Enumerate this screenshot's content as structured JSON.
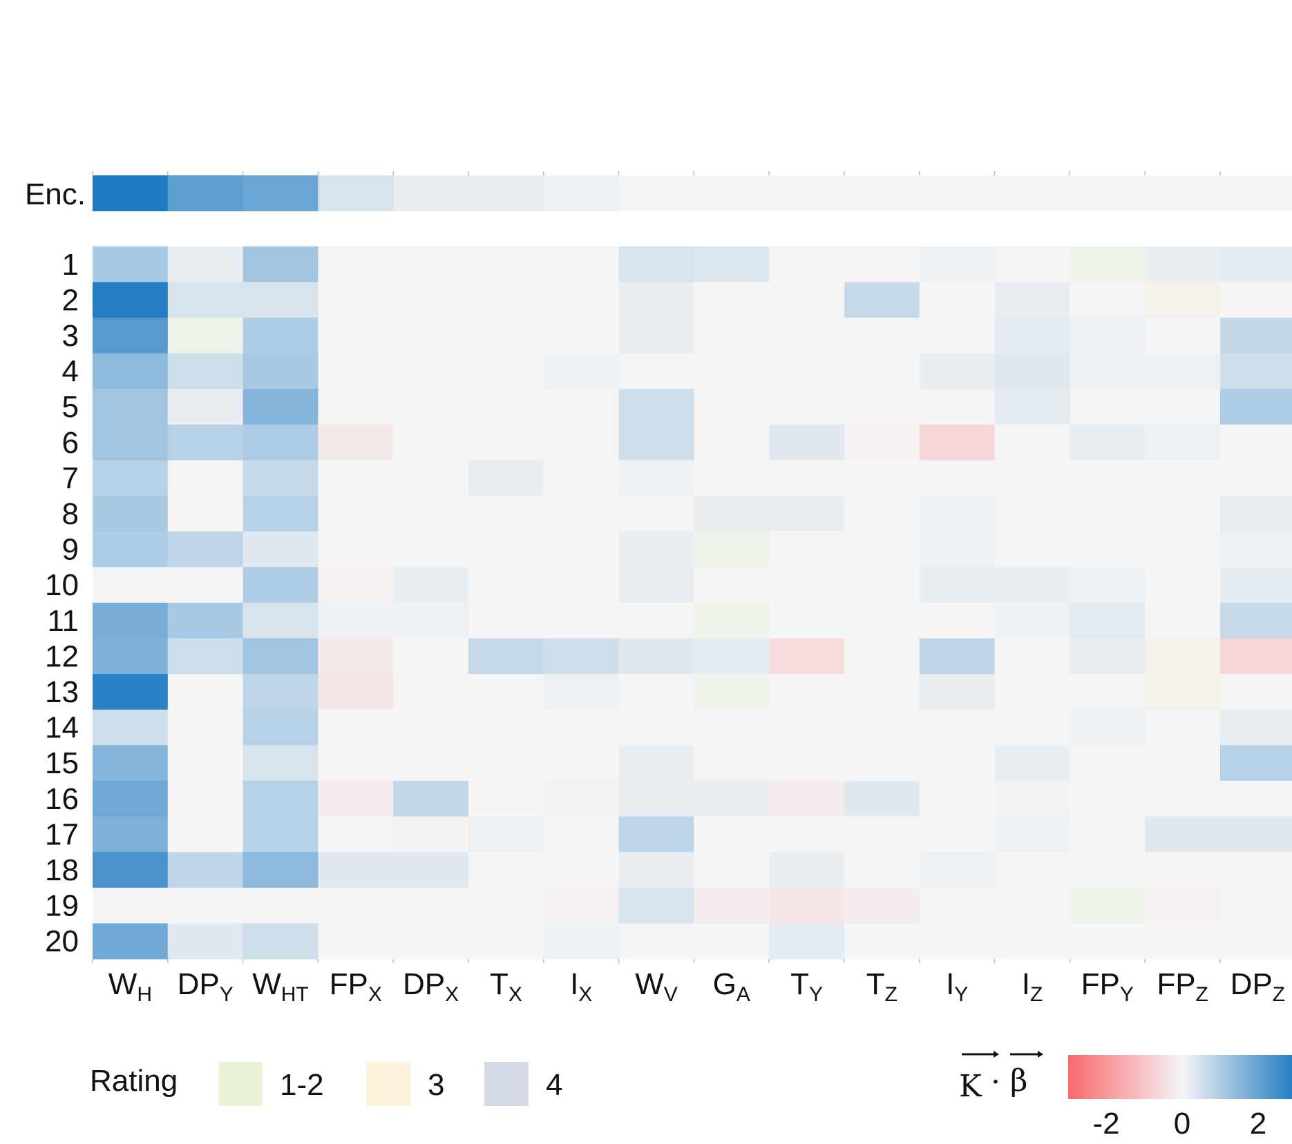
{
  "chart_data": {
    "type": "heatmap",
    "columns": [
      "WH",
      "DPY",
      "WHT",
      "FPX",
      "DPX",
      "TX",
      "IX",
      "WV",
      "GA",
      "TY",
      "TZ",
      "IY",
      "IZ",
      "FPY",
      "FPZ",
      "DPZ"
    ],
    "column_labels": [
      {
        "main": "W",
        "sub": "H"
      },
      {
        "main": "DP",
        "sub": "Y"
      },
      {
        "main": "W",
        "sub": "HT"
      },
      {
        "main": "FP",
        "sub": "X"
      },
      {
        "main": "DP",
        "sub": "X"
      },
      {
        "main": "T",
        "sub": "X"
      },
      {
        "main": "I",
        "sub": "X"
      },
      {
        "main": "W",
        "sub": "V"
      },
      {
        "main": "G",
        "sub": "A"
      },
      {
        "main": "T",
        "sub": "Y"
      },
      {
        "main": "T",
        "sub": "Z"
      },
      {
        "main": "I",
        "sub": "Y"
      },
      {
        "main": "I",
        "sub": "Z"
      },
      {
        "main": "FP",
        "sub": "Y"
      },
      {
        "main": "FP",
        "sub": "Z"
      },
      {
        "main": "DP",
        "sub": "Z"
      }
    ],
    "encoding_row": {
      "label": "Enc.",
      "values": [
        3.2,
        2.0,
        1.8,
        0.3,
        0.1,
        0.1,
        0.05,
        0,
        0,
        0,
        0,
        0,
        0,
        0,
        0,
        0
      ]
    },
    "rows": [
      "1",
      "2",
      "3",
      "4",
      "5",
      "6",
      "7",
      "8",
      "9",
      "10",
      "11",
      "12",
      "13",
      "14",
      "15",
      "16",
      "17",
      "18",
      "19",
      "20"
    ],
    "values": [
      [
        0.9,
        0.1,
        1.0,
        0,
        0,
        0,
        0,
        0.3,
        0.25,
        0,
        0,
        0.05,
        0,
        "G",
        0.1,
        0.15
      ],
      [
        2.9,
        0.3,
        0.3,
        0,
        0,
        0,
        0,
        0.1,
        0,
        0,
        0.5,
        0,
        "B",
        0,
        "Y",
        0
      ],
      [
        2.1,
        "G",
        0.8,
        0,
        0,
        0,
        0,
        0.1,
        0,
        0,
        0,
        0,
        0.15,
        0.05,
        0,
        0.55
      ],
      [
        1.3,
        0.4,
        0.9,
        0,
        0,
        0,
        0.05,
        0,
        0,
        0,
        0,
        0.1,
        0.2,
        0.05,
        0.05,
        0.4
      ],
      [
        1.0,
        "B",
        1.4,
        0,
        0,
        0,
        0,
        0.4,
        0,
        0,
        0,
        0,
        0.15,
        0,
        0,
        0.8
      ],
      [
        1.0,
        0.7,
        0.8,
        -0.15,
        0,
        0,
        0,
        0.4,
        0,
        0.2,
        -0.05,
        -0.5,
        0,
        0.1,
        0.05,
        0
      ],
      [
        0.7,
        0,
        0.5,
        0,
        0,
        "B",
        0,
        0.05,
        0,
        0,
        0,
        0,
        0,
        0,
        0,
        0
      ],
      [
        0.9,
        0,
        0.7,
        0,
        0,
        0,
        0,
        0,
        0.1,
        0.1,
        0,
        0.05,
        0,
        0,
        0,
        "B"
      ],
      [
        0.8,
        0.6,
        0.2,
        0,
        0,
        0,
        0,
        0.1,
        "G",
        0,
        0,
        0.05,
        0,
        0,
        0,
        0.05
      ],
      [
        0,
        0,
        0.8,
        -0.05,
        0.1,
        0,
        0,
        "B",
        0,
        0,
        0,
        0.1,
        0.1,
        0.05,
        0,
        0.15
      ],
      [
        1.6,
        0.9,
        0.3,
        0.05,
        0.05,
        0,
        0,
        0,
        "G",
        0,
        0,
        0,
        0.05,
        0.15,
        0,
        0.5
      ],
      [
        1.5,
        0.4,
        1.0,
        -0.15,
        0,
        0.5,
        0.4,
        0.2,
        0.15,
        -0.4,
        0,
        0.6,
        0,
        0.1,
        "Y",
        -0.5
      ],
      [
        2.8,
        0,
        0.6,
        -0.2,
        0,
        0,
        0.05,
        0,
        "G",
        0,
        0,
        "B",
        0,
        0,
        "Y",
        0
      ],
      [
        0.4,
        0,
        0.7,
        0,
        0,
        0,
        0,
        0,
        0,
        0,
        0,
        0,
        0,
        0.05,
        0,
        0.1
      ],
      [
        1.4,
        0,
        0.3,
        0,
        0,
        0,
        0,
        0.1,
        0,
        0,
        0,
        0,
        0.1,
        0,
        0,
        0.7
      ],
      [
        1.7,
        0,
        0.7,
        -0.1,
        0.55,
        0,
        -0.03,
        "B",
        "B",
        -0.1,
        0.2,
        0,
        0.03,
        0,
        0,
        0
      ],
      [
        1.5,
        0,
        0.7,
        0,
        -0.03,
        0.05,
        0,
        0.6,
        0,
        0,
        0,
        0,
        0.05,
        0,
        0.2,
        0.2
      ],
      [
        2.3,
        0.6,
        1.3,
        0.2,
        0.2,
        0,
        0,
        0.1,
        0,
        0.1,
        0,
        0.05,
        0,
        0,
        0,
        0
      ],
      [
        0,
        0,
        0,
        0,
        0,
        0,
        -0.05,
        0.3,
        -0.1,
        -0.2,
        -0.1,
        0,
        0,
        "G",
        -0.05,
        0
      ],
      [
        1.7,
        0.2,
        0.4,
        0,
        0,
        0,
        0.05,
        0,
        0,
        0.15,
        0,
        0,
        0,
        0,
        0,
        0
      ]
    ],
    "rating_codes": {
      "G": "1-2",
      "Y": "3",
      "B": "4"
    },
    "colorscale": {
      "min": -3,
      "max": 3,
      "neg": "#f8696b",
      "mid": "#f5f5f5",
      "pos": "#1f7ac2"
    },
    "legend": {
      "rating_title": "Rating",
      "rating_items": [
        {
          "label": "1-2",
          "color": "#e8f3d8"
        },
        {
          "label": "3",
          "color": "#fdf3da"
        },
        {
          "label": "4",
          "color": "#d4dae6"
        }
      ],
      "colorbar_title_left": "K",
      "colorbar_title_dot": "·",
      "colorbar_title_right": "β",
      "colorbar_ticks": [
        "-2",
        "0",
        "2"
      ],
      "colorbar_tick_values": [
        -2,
        0,
        2
      ]
    },
    "cell_colors_rating": {
      "G": "#eef3ea",
      "Y": "#f4f2ea",
      "B": "#e9edf1"
    }
  }
}
